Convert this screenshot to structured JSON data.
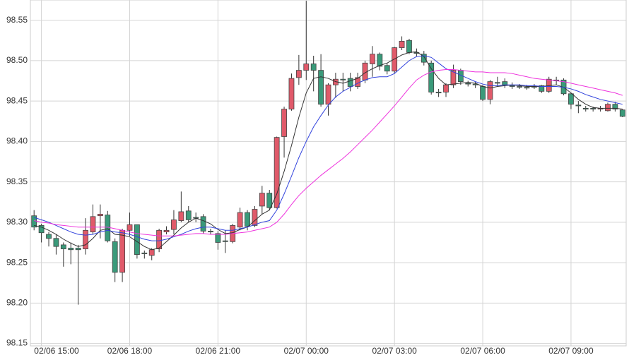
{
  "chart_data": {
    "type": "candlestick",
    "categories": [
      null,
      "02/06 15:00",
      null,
      null,
      null,
      null,
      null,
      null,
      null,
      null,
      null,
      null,
      null,
      "02/06 18:00",
      null,
      null,
      null,
      null,
      null,
      null,
      null,
      null,
      null,
      null,
      null,
      "02/06 21:00",
      null,
      null,
      null,
      null,
      null,
      null,
      null,
      null,
      null,
      null,
      null,
      "02/07 00:00",
      null,
      null,
      null,
      null,
      null,
      null,
      null,
      null,
      null,
      null,
      null,
      "02/07 03:00",
      null,
      null,
      null,
      null,
      null,
      null,
      null,
      null,
      null,
      null,
      null,
      "02/07 06:00",
      null,
      null,
      null,
      null,
      null,
      null,
      null,
      null,
      null,
      null,
      null,
      "02/07 09:00",
      null,
      null,
      null,
      null,
      null,
      null,
      null
    ],
    "open": [
      98.308,
      98.296,
      98.285,
      98.28,
      98.272,
      98.268,
      98.268,
      98.267,
      98.288,
      98.308,
      98.309,
      98.276,
      98.238,
      98.29,
      98.297,
      98.262,
      98.259,
      98.267,
      98.288,
      98.291,
      98.302,
      98.314,
      98.306,
      98.307,
      98.289,
      98.286,
      98.277,
      98.276,
      98.294,
      98.312,
      98.296,
      98.32,
      98.336,
      98.318,
      98.406,
      98.44,
      98.479,
      98.488,
      98.496,
      98.488,
      98.446,
      98.47,
      98.477,
      98.478,
      98.468,
      98.476,
      98.496,
      98.508,
      98.494,
      98.487,
      98.516,
      98.525,
      98.51,
      98.508,
      98.497,
      98.461,
      98.461,
      98.47,
      98.488,
      98.472,
      98.471,
      98.468,
      98.452,
      98.473,
      98.474,
      98.469,
      98.468,
      98.467,
      98.468,
      98.469,
      98.462,
      98.476,
      98.476,
      98.459,
      98.445,
      98.441,
      98.441,
      98.44,
      98.438,
      98.446,
      98.439
    ],
    "high": [
      98.315,
      98.298,
      98.288,
      98.285,
      98.275,
      98.275,
      98.272,
      98.305,
      98.322,
      98.322,
      98.314,
      98.28,
      98.292,
      98.312,
      98.297,
      98.265,
      98.268,
      98.292,
      98.295,
      98.315,
      98.338,
      98.32,
      98.312,
      98.31,
      98.292,
      98.289,
      98.29,
      98.298,
      98.318,
      98.315,
      98.32,
      98.345,
      98.34,
      98.406,
      98.443,
      98.484,
      98.507,
      98.574,
      98.506,
      98.508,
      98.472,
      98.485,
      98.485,
      98.485,
      98.485,
      98.5,
      98.518,
      98.51,
      98.497,
      98.517,
      98.53,
      98.527,
      98.515,
      98.512,
      98.5,
      98.465,
      98.472,
      98.495,
      98.49,
      98.475,
      98.474,
      98.47,
      98.476,
      98.48,
      98.478,
      98.473,
      98.471,
      98.47,
      98.471,
      98.47,
      98.48,
      98.48,
      98.478,
      98.46,
      98.45,
      98.444,
      98.443,
      98.444,
      98.448,
      98.449,
      98.44
    ],
    "low": [
      98.29,
      98.275,
      98.27,
      98.26,
      98.245,
      98.248,
      98.198,
      98.26,
      98.285,
      98.28,
      98.275,
      98.226,
      98.226,
      98.283,
      98.255,
      98.255,
      98.253,
      98.263,
      98.285,
      98.285,
      98.3,
      98.3,
      98.3,
      98.286,
      98.285,
      98.266,
      98.262,
      98.274,
      98.29,
      98.29,
      98.294,
      98.31,
      98.315,
      98.317,
      98.38,
      98.438,
      98.47,
      98.476,
      98.462,
      98.443,
      98.432,
      98.454,
      98.462,
      98.462,
      98.465,
      98.472,
      98.48,
      98.488,
      98.483,
      98.484,
      98.513,
      98.508,
      98.505,
      98.494,
      98.458,
      98.455,
      98.455,
      98.466,
      98.47,
      98.468,
      98.466,
      98.45,
      98.446,
      98.468,
      98.466,
      98.465,
      98.465,
      98.464,
      98.465,
      98.46,
      98.46,
      98.47,
      98.457,
      98.44,
      98.435,
      98.437,
      98.437,
      98.437,
      98.437,
      98.437,
      98.43
    ],
    "close": [
      98.294,
      98.287,
      98.28,
      98.27,
      98.267,
      98.266,
      98.266,
      98.29,
      98.307,
      98.31,
      98.277,
      98.238,
      98.29,
      98.297,
      98.26,
      98.261,
      98.266,
      98.29,
      98.29,
      98.303,
      98.313,
      98.303,
      98.305,
      98.289,
      98.288,
      98.275,
      98.276,
      98.296,
      98.312,
      98.295,
      98.316,
      98.336,
      98.318,
      98.405,
      98.44,
      98.478,
      98.488,
      98.496,
      98.488,
      98.446,
      98.47,
      98.477,
      98.476,
      98.468,
      98.479,
      98.497,
      98.508,
      98.493,
      98.487,
      98.516,
      98.524,
      98.51,
      98.509,
      98.498,
      98.461,
      98.46,
      98.47,
      98.488,
      98.474,
      98.471,
      98.47,
      98.452,
      98.474,
      98.472,
      98.47,
      98.468,
      98.467,
      98.466,
      98.467,
      98.462,
      98.477,
      98.475,
      98.459,
      98.446,
      98.444,
      98.44,
      98.44,
      98.441,
      98.446,
      98.44,
      98.431
    ],
    "up_color": "#e05a6a",
    "down_color": "#3a9a7a",
    "lines": [
      {
        "color": "#333333",
        "values": [
          98.296,
          98.294,
          98.29,
          98.285,
          98.279,
          98.274,
          98.27,
          98.272,
          98.28,
          98.29,
          98.292,
          98.285,
          98.284,
          98.282,
          98.276,
          98.27,
          98.266,
          98.268,
          98.276,
          98.284,
          98.293,
          98.3,
          98.305,
          98.302,
          98.298,
          98.291,
          98.286,
          98.287,
          98.291,
          98.294,
          98.302,
          98.31,
          98.315,
          98.335,
          98.363,
          98.395,
          98.43,
          98.46,
          98.478,
          98.48,
          98.478,
          98.474,
          98.472,
          98.475,
          98.478,
          98.485,
          98.49,
          98.494,
          98.497,
          98.502,
          98.507,
          98.51,
          98.511,
          98.505,
          98.49,
          98.478,
          98.47,
          98.471,
          98.472,
          98.473,
          98.472,
          98.468,
          98.466,
          98.468,
          98.469,
          98.47,
          98.469,
          98.468,
          98.468,
          98.468,
          98.469,
          98.47,
          98.467,
          98.46,
          98.452,
          98.446,
          98.442,
          98.441,
          98.441,
          98.441,
          98.44
        ]
      },
      {
        "color": "#3344dd",
        "values": [
          98.306,
          98.303,
          98.3,
          98.296,
          98.292,
          98.288,
          98.285,
          98.284,
          98.285,
          98.288,
          98.29,
          98.288,
          98.287,
          98.285,
          98.282,
          98.279,
          98.277,
          98.277,
          98.279,
          98.282,
          98.285,
          98.289,
          98.292,
          98.294,
          98.294,
          98.292,
          98.29,
          98.29,
          98.292,
          98.294,
          98.297,
          98.3,
          98.302,
          98.315,
          98.335,
          98.357,
          98.38,
          98.4,
          98.418,
          98.432,
          98.445,
          98.455,
          98.462,
          98.467,
          98.472,
          98.476,
          98.479,
          98.48,
          98.48,
          98.484,
          98.492,
          98.5,
          98.505,
          98.506,
          98.504,
          98.497,
          98.49,
          98.486,
          98.482,
          98.478,
          98.474,
          98.471,
          98.469,
          98.469,
          98.47,
          98.47,
          98.47,
          98.469,
          98.469,
          98.468,
          98.468,
          98.468,
          98.467,
          98.465,
          98.462,
          98.458,
          98.455,
          98.452,
          98.45,
          98.448,
          98.446
        ]
      },
      {
        "color": "#ee33dd",
        "values": [
          98.302,
          98.3,
          98.299,
          98.297,
          98.296,
          98.295,
          98.294,
          98.294,
          98.294,
          98.294,
          98.294,
          98.292,
          98.29,
          98.288,
          98.286,
          98.285,
          98.284,
          98.283,
          98.283,
          98.283,
          98.284,
          98.285,
          98.286,
          98.286,
          98.285,
          98.285,
          98.285,
          98.286,
          98.287,
          98.288,
          98.29,
          98.292,
          98.294,
          98.3,
          98.31,
          98.322,
          98.333,
          98.342,
          98.35,
          98.358,
          98.365,
          98.372,
          98.379,
          98.387,
          98.396,
          98.405,
          98.414,
          98.424,
          98.434,
          98.444,
          98.455,
          98.466,
          98.476,
          98.482,
          98.486,
          98.488,
          98.489,
          98.489,
          98.488,
          98.487,
          98.486,
          98.486,
          98.485,
          98.485,
          98.485,
          98.484,
          98.482,
          98.48,
          98.478,
          98.477,
          98.476,
          98.475,
          98.474,
          98.472,
          98.47,
          98.468,
          98.466,
          98.464,
          98.462,
          98.46,
          98.457
        ]
      }
    ],
    "ylim": [
      98.147,
      98.575
    ],
    "yticks": [
      98.15,
      {
        "value": 98.2,
        "label": "98.20"
      },
      98.25,
      {
        "value": 98.3,
        "label": "98.30"
      },
      98.35,
      {
        "value": 98.4,
        "label": "98.40"
      },
      98.45,
      {
        "value": 98.5,
        "label": "98.50"
      },
      98.55
    ],
    "grid": true
  }
}
